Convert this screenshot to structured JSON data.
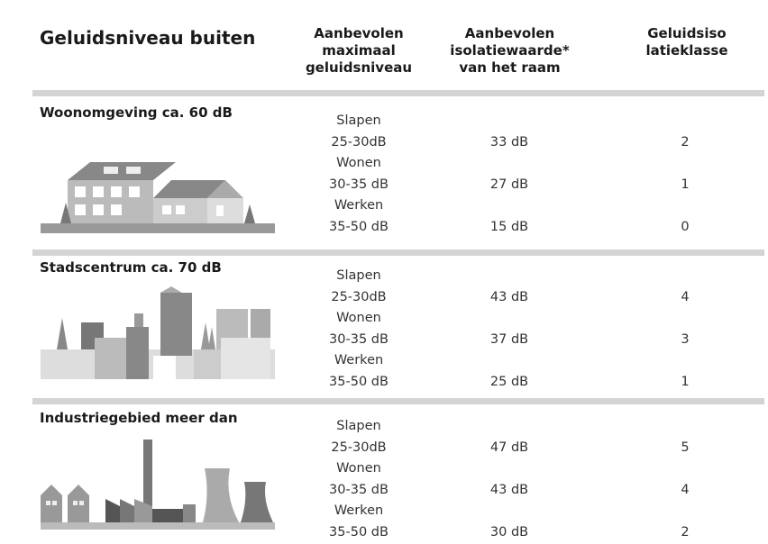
{
  "header": {
    "title": "Geluidsniveau buiten",
    "columns": [
      "Aanbevolen maximaal geluidsniveau",
      "Aanbevolen isolatiewaarde* van het raam",
      "Geluidsisolatieklasse"
    ]
  },
  "sections": [
    {
      "title": "Woonomgeving ca. 60 dB",
      "rows": [
        {
          "activity": "Slapen",
          "level": "25-30dB",
          "isolation": "33 dB",
          "class": 2
        },
        {
          "activity": "Wonen",
          "level": "30-35 dB",
          "isolation": "27 dB",
          "class": 1
        },
        {
          "activity": "Werken",
          "level": "35-50 dB",
          "isolation": "15 dB",
          "class": 0
        }
      ]
    },
    {
      "title": "Stadscentrum ca. 70 dB",
      "rows": [
        {
          "activity": "Slapen",
          "level": "25-30dB",
          "isolation": "43 dB",
          "class": 4
        },
        {
          "activity": "Wonen",
          "level": "30-35 dB",
          "isolation": "37 dB",
          "class": 3
        },
        {
          "activity": "Werken",
          "level": "35-50 dB",
          "isolation": "25 dB",
          "class": 1
        }
      ]
    },
    {
      "title": "Industriegebied meer dan",
      "rows": [
        {
          "activity": "Slapen",
          "level": "25-30dB",
          "isolation": "47 dB",
          "class": 5
        },
        {
          "activity": "Wonen",
          "level": "30-35 dB",
          "isolation": "43 dB",
          "class": 4
        },
        {
          "activity": "Werken",
          "level": "35-50 dB",
          "isolation": "30 dB",
          "class": 2
        }
      ]
    }
  ]
}
